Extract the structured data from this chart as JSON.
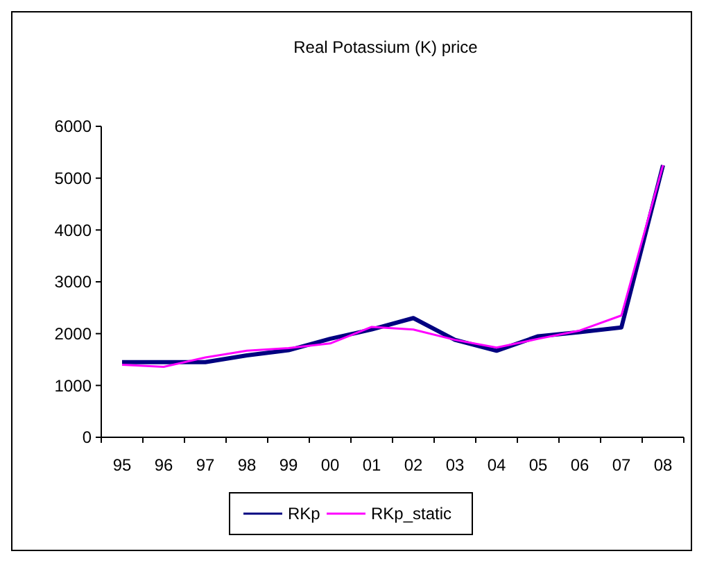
{
  "chart_data": {
    "type": "line",
    "title": "Real Potassium (K) price",
    "categories": [
      "95",
      "96",
      "97",
      "98",
      "99",
      "00",
      "01",
      "02",
      "03",
      "04",
      "05",
      "06",
      "07",
      "08"
    ],
    "series": [
      {
        "name": "RKp",
        "color": "#000080",
        "values": [
          1450,
          1450,
          1450,
          1580,
          1680,
          1900,
          2080,
          2300,
          1880,
          1670,
          1950,
          2030,
          2120,
          5250
        ]
      },
      {
        "name": "RKp_static",
        "color": "#ff00ff",
        "values": [
          1400,
          1360,
          1540,
          1670,
          1720,
          1810,
          2130,
          2080,
          1880,
          1730,
          1900,
          2060,
          2350,
          5250
        ]
      }
    ],
    "ylim": [
      0,
      6000
    ],
    "yticks": [
      0,
      1000,
      2000,
      3000,
      4000,
      5000,
      6000
    ],
    "grid": false,
    "legend": "bottom",
    "marker": "none",
    "line_style": "solid"
  }
}
